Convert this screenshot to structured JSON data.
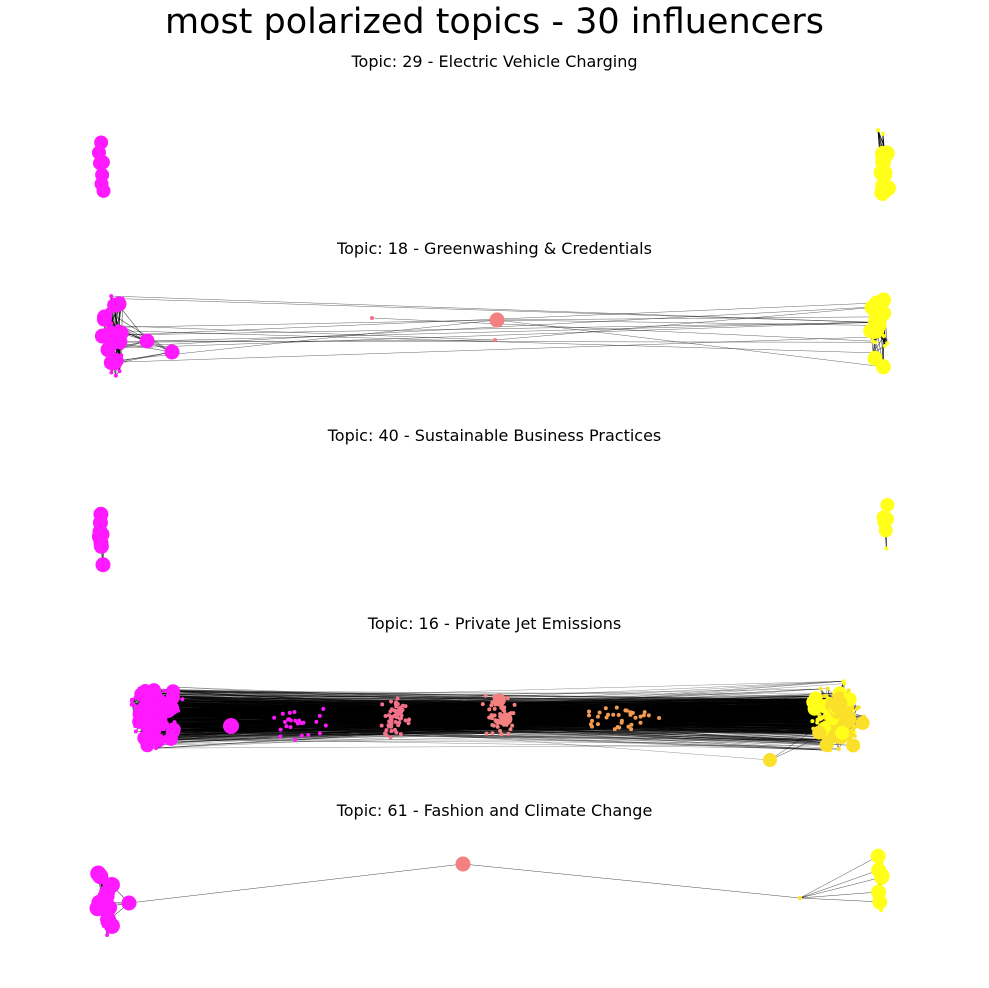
{
  "title": "most polarized topics - 30 influencers",
  "colors": {
    "left_group": "#ff19ff",
    "right_group": "#ffff19",
    "mid_pink": "#f2708a",
    "mid_salmon": "#f48080",
    "mid_orange": "#f29a50",
    "right_gold": "#fbe02a",
    "edge": "#000000"
  },
  "panels": [
    {
      "title": "Topic: 29 - Electric Vehicle Charging",
      "density": "sparse",
      "bridge": "none"
    },
    {
      "title": "Topic: 18 - Greenwashing & Credentials",
      "density": "medium",
      "bridge": "few"
    },
    {
      "title": "Topic: 40 - Sustainable Business Practices",
      "density": "sparse",
      "bridge": "none"
    },
    {
      "title": "Topic: 16 - Private Jet Emissions",
      "density": "dense",
      "bridge": "many"
    },
    {
      "title": "Topic: 61 - Fashion and Climate Change",
      "density": "medium",
      "bridge": "single"
    }
  ]
}
